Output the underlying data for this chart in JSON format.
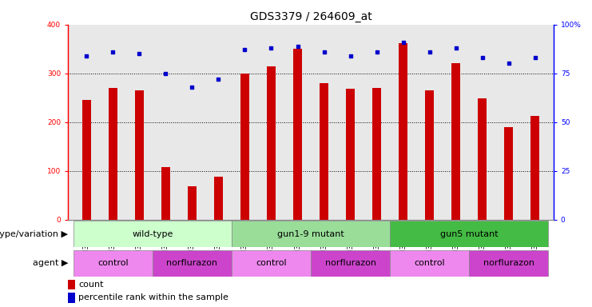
{
  "title": "GDS3379 / 264609_at",
  "samples": [
    "GSM323075",
    "GSM323076",
    "GSM323077",
    "GSM323078",
    "GSM323079",
    "GSM323080",
    "GSM323081",
    "GSM323082",
    "GSM323083",
    "GSM323084",
    "GSM323085",
    "GSM323086",
    "GSM323087",
    "GSM323088",
    "GSM323089",
    "GSM323090",
    "GSM323091",
    "GSM323092"
  ],
  "counts": [
    245,
    270,
    265,
    108,
    68,
    88,
    300,
    315,
    350,
    280,
    268,
    270,
    362,
    265,
    320,
    248,
    190,
    213
  ],
  "percentiles": [
    84,
    86,
    85,
    75,
    68,
    72,
    87,
    88,
    89,
    86,
    84,
    86,
    91,
    86,
    88,
    83,
    80,
    83
  ],
  "bar_color": "#cc0000",
  "dot_color": "#0000cc",
  "bg_color": "#e8e8e8",
  "ylim_left": [
    0,
    400
  ],
  "ylim_right": [
    0,
    100
  ],
  "yticks_left": [
    0,
    100,
    200,
    300,
    400
  ],
  "ytick_labels_left": [
    "0",
    "100",
    "200",
    "300",
    "400"
  ],
  "yticks_right": [
    0,
    25,
    50,
    75,
    100
  ],
  "ytick_labels_right": [
    "0",
    "25",
    "50",
    "75",
    "100%"
  ],
  "grid_lines": [
    100,
    200,
    300
  ],
  "genotype_groups": [
    {
      "label": "wild-type",
      "start": 0,
      "end": 6,
      "color": "#ccffcc",
      "border": "#888888"
    },
    {
      "label": "gun1-9 mutant",
      "start": 6,
      "end": 12,
      "color": "#99dd99",
      "border": "#888888"
    },
    {
      "label": "gun5 mutant",
      "start": 12,
      "end": 18,
      "color": "#44bb44",
      "border": "#888888"
    }
  ],
  "agent_groups": [
    {
      "label": "control",
      "start": 0,
      "end": 3,
      "color": "#ee88ee",
      "border": "#888888"
    },
    {
      "label": "norflurazon",
      "start": 3,
      "end": 6,
      "color": "#cc44cc",
      "border": "#888888"
    },
    {
      "label": "control",
      "start": 6,
      "end": 9,
      "color": "#ee88ee",
      "border": "#888888"
    },
    {
      "label": "norflurazon",
      "start": 9,
      "end": 12,
      "color": "#cc44cc",
      "border": "#888888"
    },
    {
      "label": "control",
      "start": 12,
      "end": 15,
      "color": "#ee88ee",
      "border": "#888888"
    },
    {
      "label": "norflurazon",
      "start": 15,
      "end": 18,
      "color": "#cc44cc",
      "border": "#888888"
    }
  ],
  "legend_count_label": "count",
  "legend_pct_label": "percentile rank within the sample",
  "genotype_row_label": "genotype/variation",
  "agent_row_label": "agent",
  "bar_width": 0.35,
  "title_fontsize": 10,
  "tick_fontsize": 6.5,
  "label_fontsize": 8,
  "annotation_fontsize": 8,
  "row_label_fontsize": 8
}
